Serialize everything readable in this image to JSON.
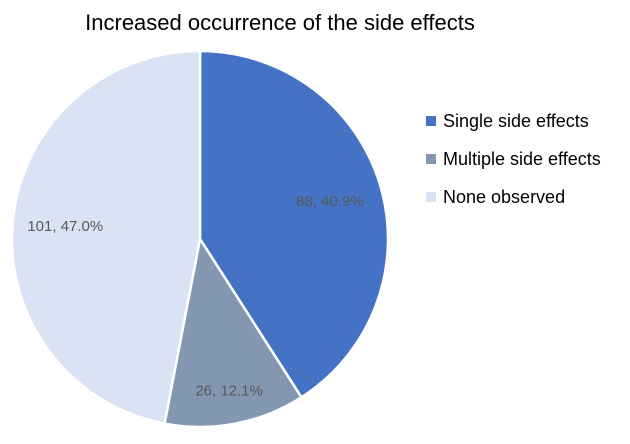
{
  "chart_data": {
    "type": "pie",
    "title": "Increased occurrence of the side effects",
    "categories": [
      "Single side effects",
      "Multiple side effects",
      "None observed"
    ],
    "values": [
      88,
      26,
      101
    ],
    "percentages": [
      "40.9%",
      "12.1%",
      "47.0%"
    ],
    "data_labels": [
      "88, 40.9%",
      "26, 12.1%",
      "101, 47.0%"
    ],
    "colors": [
      "#4472C4",
      "#8497B0",
      "#DAE3F3"
    ],
    "legend_position": "right"
  }
}
